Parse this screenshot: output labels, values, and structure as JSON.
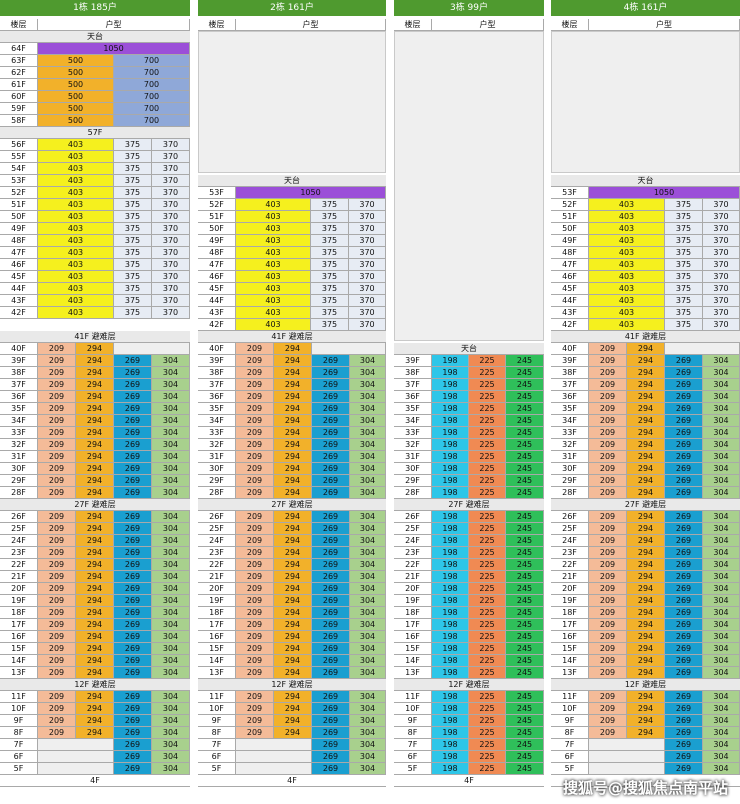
{
  "colors": {
    "header": "#4f9a2f",
    "purple": "#9b4fd8",
    "yellow": "#f5f01e",
    "orange": "#f2b12a",
    "slate": "#8fa8d8",
    "light": "#e7ecf4",
    "salmon": "#f4bb98",
    "blue": "#1a9fd0",
    "green": "#a8d08d",
    "cyan": "#2ec6e8",
    "coral": "#f08a53",
    "emerald": "#2fbf5a",
    "white": "#ffffff"
  },
  "panels": [
    {
      "title": "1栋 185户",
      "col_floor": "楼层",
      "col_type": "户型",
      "roof_label": "天台",
      "top_rows": [
        {
          "floor": "64F",
          "vals": [
            "1050"
          ],
          "kind": "purple"
        },
        {
          "floor": "63F",
          "vals": [
            "500",
            "700"
          ],
          "kind": "orange_slate"
        },
        {
          "floor": "62F",
          "vals": [
            "500",
            "700"
          ],
          "kind": "orange_slate"
        },
        {
          "floor": "61F",
          "vals": [
            "500",
            "700"
          ],
          "kind": "orange_slate"
        },
        {
          "floor": "60F",
          "vals": [
            "500",
            "700"
          ],
          "kind": "orange_slate"
        },
        {
          "floor": "59F",
          "vals": [
            "500",
            "700"
          ],
          "kind": "orange_slate"
        },
        {
          "floor": "58F",
          "vals": [
            "500",
            "700"
          ],
          "kind": "orange_slate"
        }
      ],
      "mid_label": "57F",
      "upper_floors": [
        "56F",
        "55F",
        "54F",
        "53F",
        "52F",
        "51F",
        "50F",
        "49F",
        "48F",
        "47F",
        "46F",
        "45F",
        "44F",
        "43F",
        "42F"
      ],
      "upper_vals": [
        "403",
        "375",
        "370"
      ],
      "ref1": "41F 避难层",
      "blockA_floors": [
        "40F",
        "39F",
        "38F",
        "37F",
        "36F",
        "35F",
        "34F",
        "33F",
        "32F",
        "31F",
        "30F",
        "29F",
        "28F"
      ],
      "ref2": "27F 避难层",
      "blockB_floors": [
        "26F",
        "25F",
        "24F",
        "23F",
        "22F",
        "21F",
        "20F",
        "19F",
        "18F",
        "17F",
        "16F",
        "15F",
        "14F",
        "13F"
      ],
      "ref3": "12F 避难层",
      "blockC_floors": [
        "11F",
        "10F",
        "9F",
        "8F",
        "7F",
        "6F",
        "5F"
      ],
      "vals": [
        "209",
        "294",
        "269",
        "304"
      ],
      "bottom": "4F"
    },
    {
      "title": "2栋 161户",
      "col_floor": "楼层",
      "col_type": "户型",
      "roof_label": "天台",
      "roof_row": {
        "floor": "53F",
        "vals": [
          "1050"
        ]
      },
      "upper_floors": [
        "52F",
        "51F",
        "50F",
        "49F",
        "48F",
        "47F",
        "46F",
        "45F",
        "44F",
        "43F",
        "42F"
      ],
      "upper_vals": [
        "403",
        "375",
        "370"
      ],
      "ref1": "41F 避难层",
      "blockA_floors": [
        "40F",
        "39F",
        "38F",
        "37F",
        "36F",
        "35F",
        "34F",
        "33F",
        "32F",
        "31F",
        "30F",
        "29F",
        "28F"
      ],
      "ref2": "27F 避难层",
      "blockB_floors": [
        "26F",
        "25F",
        "24F",
        "23F",
        "22F",
        "21F",
        "20F",
        "19F",
        "18F",
        "17F",
        "16F",
        "15F",
        "14F",
        "13F"
      ],
      "ref3": "12F 避难层",
      "blockC_floors": [
        "11F",
        "10F",
        "9F",
        "8F",
        "7F",
        "6F",
        "5F"
      ],
      "vals": [
        "209",
        "294",
        "269",
        "304"
      ],
      "bottom": "4F"
    },
    {
      "title": "3栋 99户",
      "col_floor": "楼层",
      "col_type": "户型",
      "roof_label": "天台",
      "blockA_floors": [
        "39F",
        "38F",
        "37F",
        "36F",
        "35F",
        "34F",
        "33F",
        "32F",
        "31F",
        "30F",
        "29F",
        "28F"
      ],
      "ref2": "27F 避难层",
      "blockB_floors": [
        "26F",
        "25F",
        "24F",
        "23F",
        "22F",
        "21F",
        "20F",
        "19F",
        "18F",
        "17F",
        "16F",
        "15F",
        "14F",
        "13F"
      ],
      "ref3": "12F 避难层",
      "blockC_floors": [
        "11F",
        "10F",
        "9F",
        "8F",
        "7F",
        "6F",
        "5F"
      ],
      "vals": [
        "198",
        "225",
        "245"
      ],
      "bottom": "4F"
    },
    {
      "title": "4栋 161户",
      "col_floor": "楼层",
      "col_type": "户型",
      "roof_label": "天台",
      "roof_row": {
        "floor": "53F",
        "vals": [
          "1050"
        ]
      },
      "upper_floors": [
        "52F",
        "51F",
        "50F",
        "49F",
        "48F",
        "47F",
        "46F",
        "45F",
        "44F",
        "43F",
        "42F"
      ],
      "upper_vals": [
        "403",
        "375",
        "370"
      ],
      "ref1": "41F 避难层",
      "blockA_floors": [
        "40F",
        "39F",
        "38F",
        "37F",
        "36F",
        "35F",
        "34F",
        "33F",
        "32F",
        "31F",
        "30F",
        "29F",
        "28F"
      ],
      "ref2": "27F 避难层",
      "blockB_floors": [
        "26F",
        "25F",
        "24F",
        "23F",
        "22F",
        "21F",
        "20F",
        "19F",
        "18F",
        "17F",
        "16F",
        "15F",
        "14F",
        "13F"
      ],
      "ref3": "12F 避难层",
      "blockC_floors": [
        "11F",
        "10F",
        "9F",
        "8F",
        "7F",
        "6F",
        "5F"
      ],
      "vals": [
        "209",
        "294",
        "269",
        "304"
      ],
      "bottom": ""
    }
  ],
  "watermark": "搜狐号@搜狐焦点南平站"
}
